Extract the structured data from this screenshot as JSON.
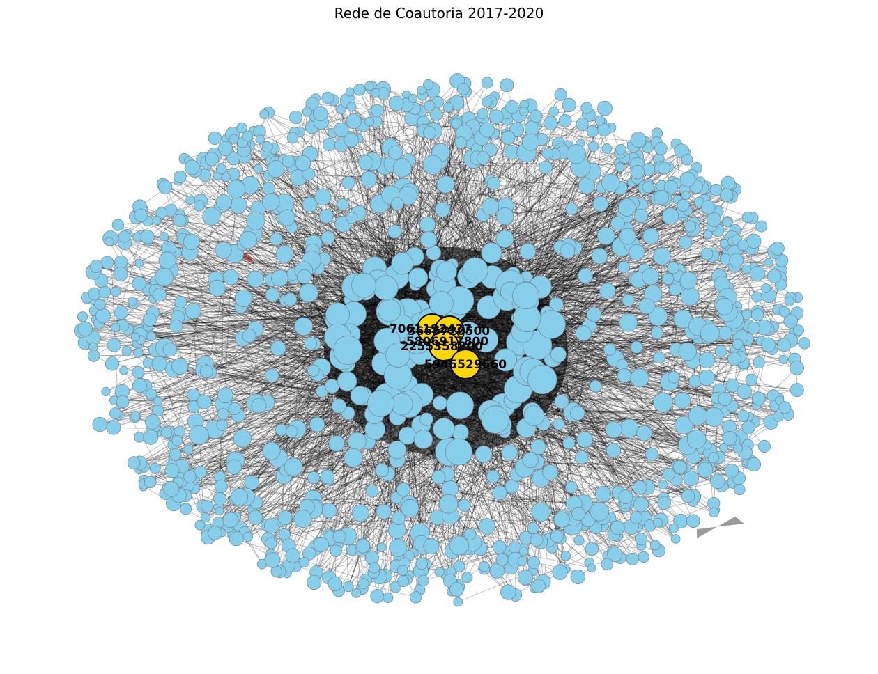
{
  "title": "Rede de Coautoria 2017-2020",
  "colors": {
    "node_fill": "#87ceeb",
    "node_stroke": "#7a8a94",
    "hub_fill": "#ffd700",
    "hub_stroke": "#000000",
    "edge": "#000000",
    "highlight_edge": "#8b1a1a",
    "background": "#ffffff"
  },
  "hubs": [
    {
      "label": "7061192437"
    },
    {
      "label": "3665720500"
    },
    {
      "label": "5806917800"
    },
    {
      "label": "2255358200"
    },
    {
      "label": "5945529660"
    }
  ]
}
